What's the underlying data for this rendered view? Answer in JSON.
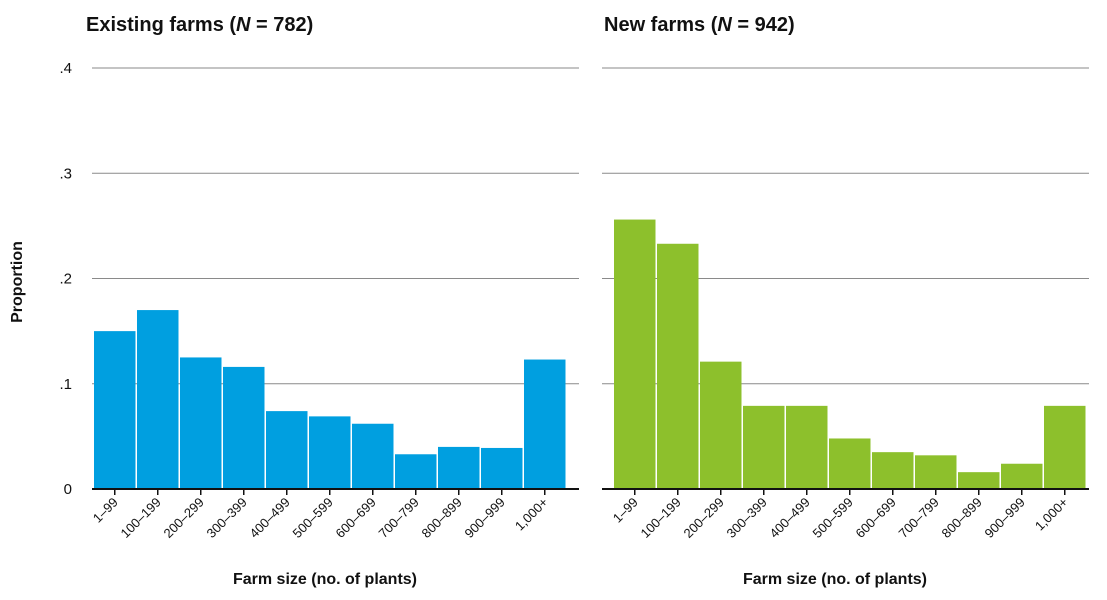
{
  "y_axis": {
    "label": "Proportion",
    "ticks": [
      {
        "value": 0,
        "label": "0"
      },
      {
        "value": 0.1,
        "label": ".1"
      },
      {
        "value": 0.2,
        "label": ".2"
      },
      {
        "value": 0.3,
        "label": ".3"
      },
      {
        "value": 0.4,
        "label": ".4"
      }
    ]
  },
  "chart_data": [
    {
      "type": "bar",
      "title_prefix": "Existing farms (",
      "title_n": "N",
      "title_suffix": " = 782)",
      "xlabel": "Farm size (no. of plants)",
      "ylabel": "Proportion",
      "ylim": [
        0,
        0.4
      ],
      "grid": true,
      "color": "#009fe0",
      "categories": [
        "1–99",
        "100–199",
        "200–299",
        "300–399",
        "400–499",
        "500–599",
        "600–699",
        "700–799",
        "800–899",
        "900–999",
        "1,000+"
      ],
      "values": [
        0.15,
        0.17,
        0.125,
        0.116,
        0.074,
        0.069,
        0.062,
        0.033,
        0.04,
        0.039,
        0.123
      ]
    },
    {
      "type": "bar",
      "title_prefix": "New farms (",
      "title_n": "N",
      "title_suffix": " = 942)",
      "xlabel": "Farm size (no. of plants)",
      "ylabel": "",
      "ylim": [
        0,
        0.4
      ],
      "grid": true,
      "color": "#8dc02c",
      "categories": [
        "1–99",
        "100–199",
        "200–299",
        "300–399",
        "400–499",
        "500–599",
        "600–699",
        "700–799",
        "800–899",
        "900–999",
        "1,000+"
      ],
      "values": [
        0.256,
        0.233,
        0.121,
        0.079,
        0.079,
        0.048,
        0.035,
        0.032,
        0.016,
        0.024,
        0.079
      ]
    }
  ]
}
